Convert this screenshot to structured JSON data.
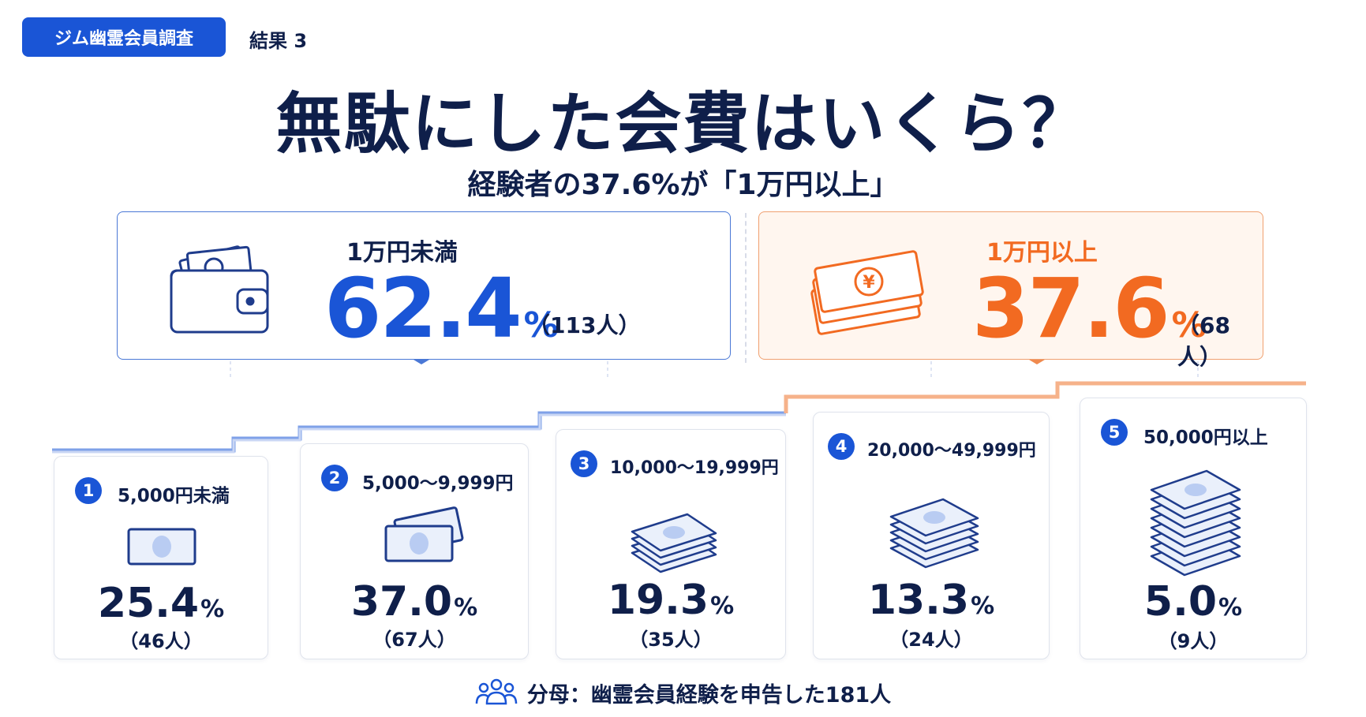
{
  "header": {
    "badge": "ジム幽霊会員調査",
    "result_label": "結果 3",
    "title": "無駄にした会費はいくら？",
    "subtitle": "経験者の37.6%が「1万円以上」"
  },
  "summary": [
    {
      "label": "1万円未満",
      "value": "62.4",
      "unit": "%",
      "count": "（113人）",
      "icon": "wallet-icon",
      "color": "#1a55d6"
    },
    {
      "label": "1万円以上",
      "value": "37.6",
      "unit": "%",
      "count": "（68人）",
      "icon": "yen-bills-icon",
      "color": "#f26a21"
    }
  ],
  "categories": [
    {
      "num": "1",
      "label": "5,000円未満",
      "value": "25.4",
      "unit": "%",
      "count": "（46人）",
      "icon": "single-bill-icon"
    },
    {
      "num": "2",
      "label": "5,000〜9,999円",
      "value": "37.0",
      "unit": "%",
      "count": "（67人）",
      "icon": "two-bills-icon"
    },
    {
      "num": "3",
      "label": "10,000〜19,999円",
      "value": "19.3",
      "unit": "%",
      "count": "（35人）",
      "icon": "bill-stack-small-icon"
    },
    {
      "num": "4",
      "label": "20,000〜49,999円",
      "value": "13.3",
      "unit": "%",
      "count": "（24人）",
      "icon": "bill-stack-medium-icon"
    },
    {
      "num": "5",
      "label": "50,000円以上",
      "value": "5.0",
      "unit": "%",
      "count": "（9人）",
      "icon": "bill-stack-large-icon"
    }
  ],
  "footer": {
    "text": "分母：幽霊会員経験を申告した181人",
    "icon": "people-group-icon"
  }
}
